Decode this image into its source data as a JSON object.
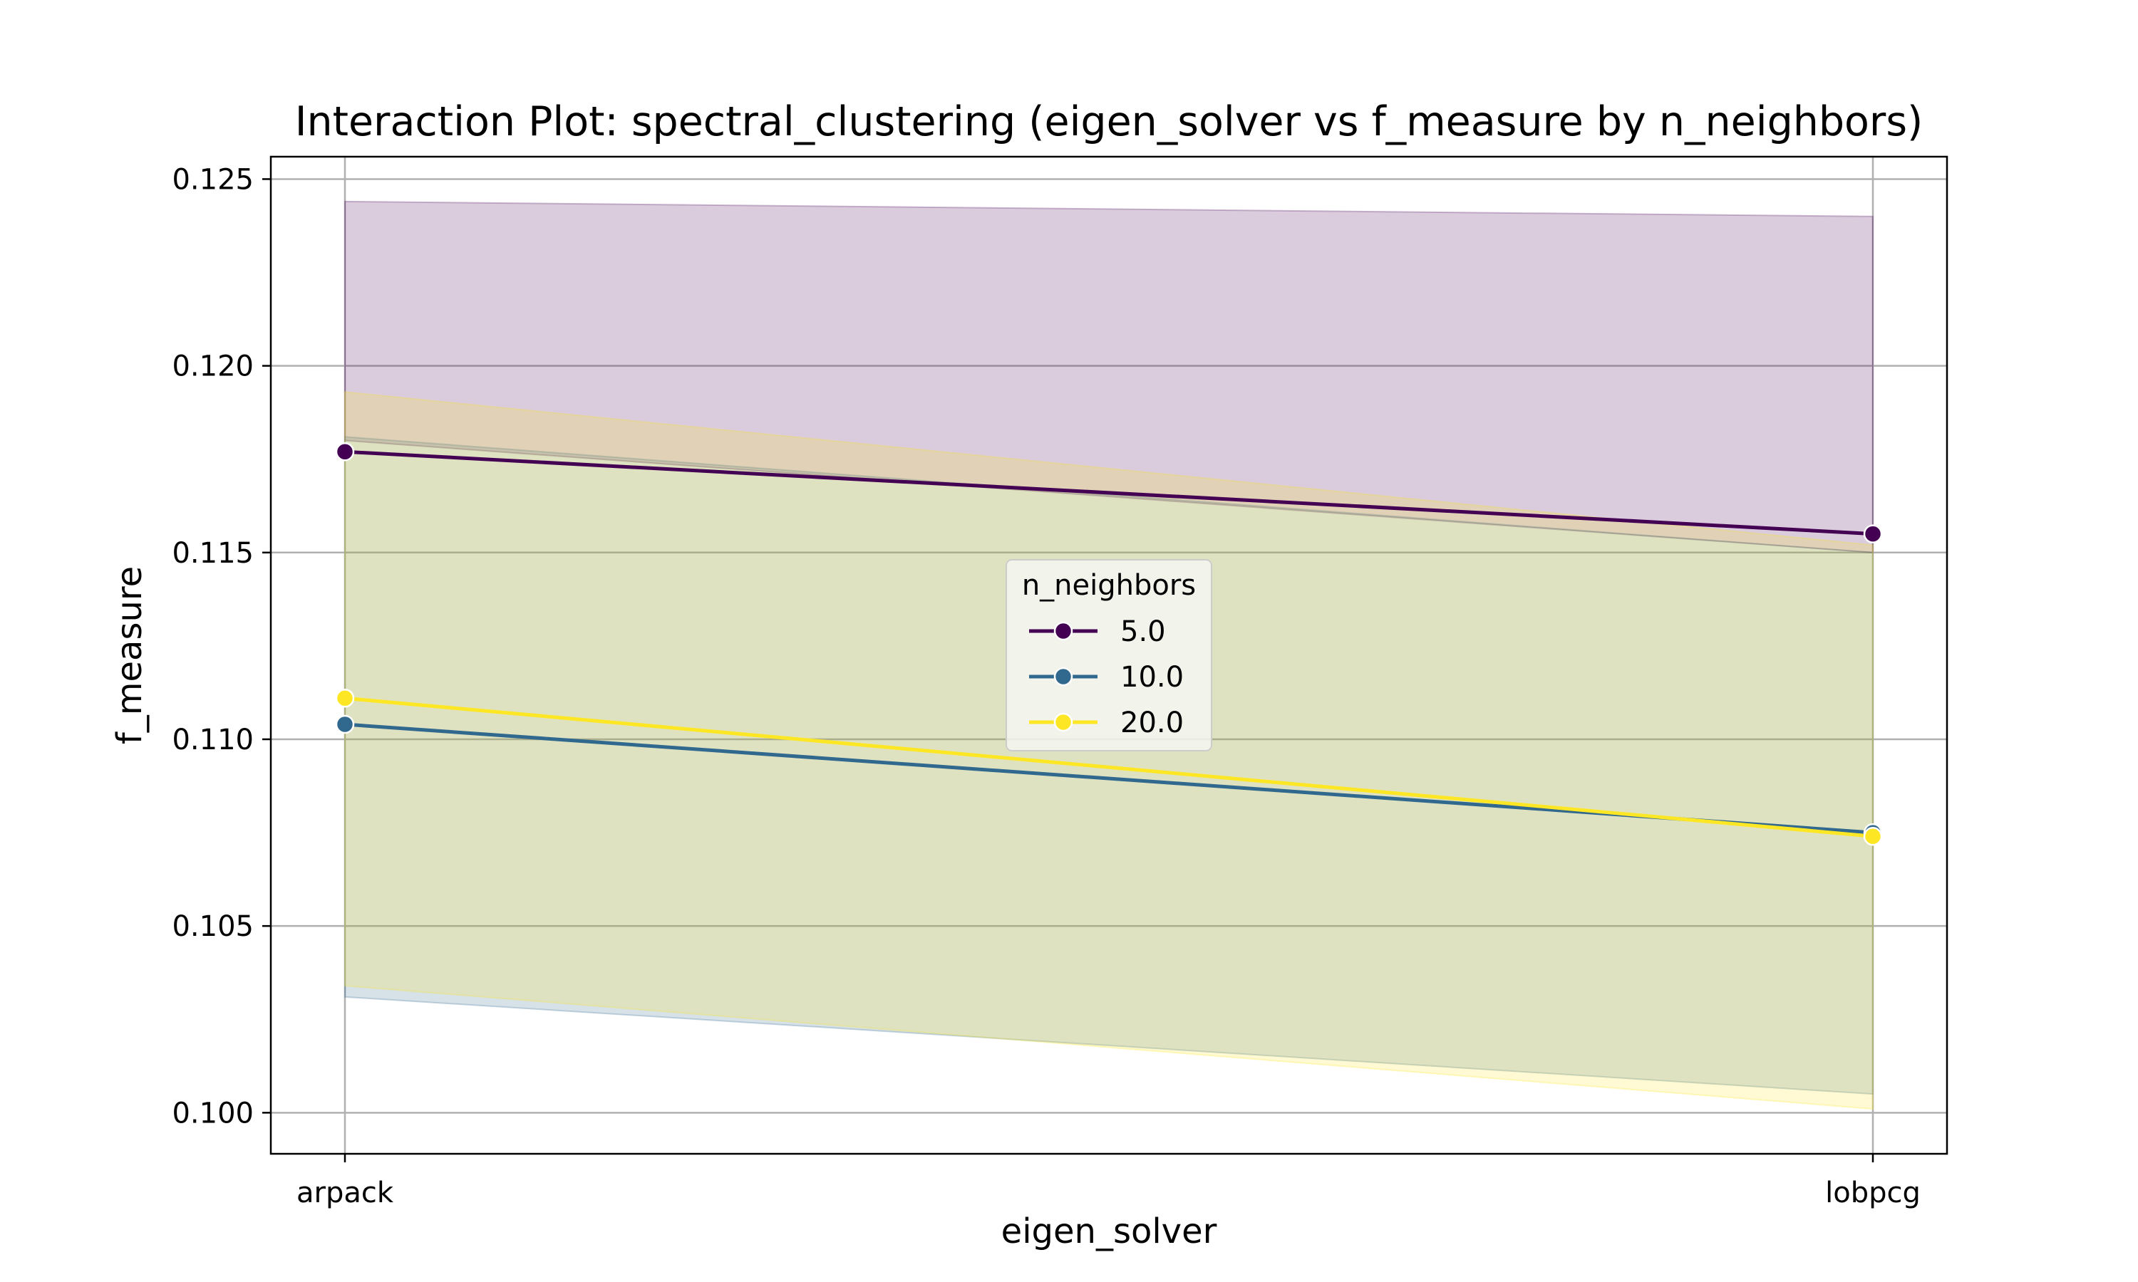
{
  "chart_data": {
    "type": "line",
    "title": "Interaction Plot: spectral_clustering (eigen_solver vs f_measure by n_neighbors)",
    "xlabel": "eigen_solver",
    "ylabel": "f_measure",
    "categories": [
      "arpack",
      "lobpcg"
    ],
    "ylim": [
      0.0989,
      0.1256
    ],
    "yticks": [
      0.1,
      0.105,
      0.11,
      0.115,
      0.12,
      0.125
    ],
    "ytick_labels": [
      "0.100",
      "0.105",
      "0.110",
      "0.115",
      "0.120",
      "0.125"
    ],
    "grid": true,
    "legend": {
      "title": "n_neighbors",
      "placement": "center"
    },
    "series": [
      {
        "name": "5.0",
        "color": "#440154",
        "values": [
          0.1177,
          0.1155
        ],
        "ci_lower": [
          0.118,
          0.115
        ],
        "ci_upper": [
          0.1244,
          0.124
        ]
      },
      {
        "name": "10.0",
        "color": "#31688e",
        "values": [
          0.1104,
          0.1075
        ],
        "ci_lower": [
          0.1031,
          0.1005
        ],
        "ci_upper": [
          0.1181,
          0.115
        ]
      },
      {
        "name": "20.0",
        "color": "#fde725",
        "values": [
          0.1111,
          0.1074
        ],
        "ci_lower": [
          0.1034,
          0.1001
        ],
        "ci_upper": [
          0.1193,
          0.1152
        ]
      }
    ]
  }
}
